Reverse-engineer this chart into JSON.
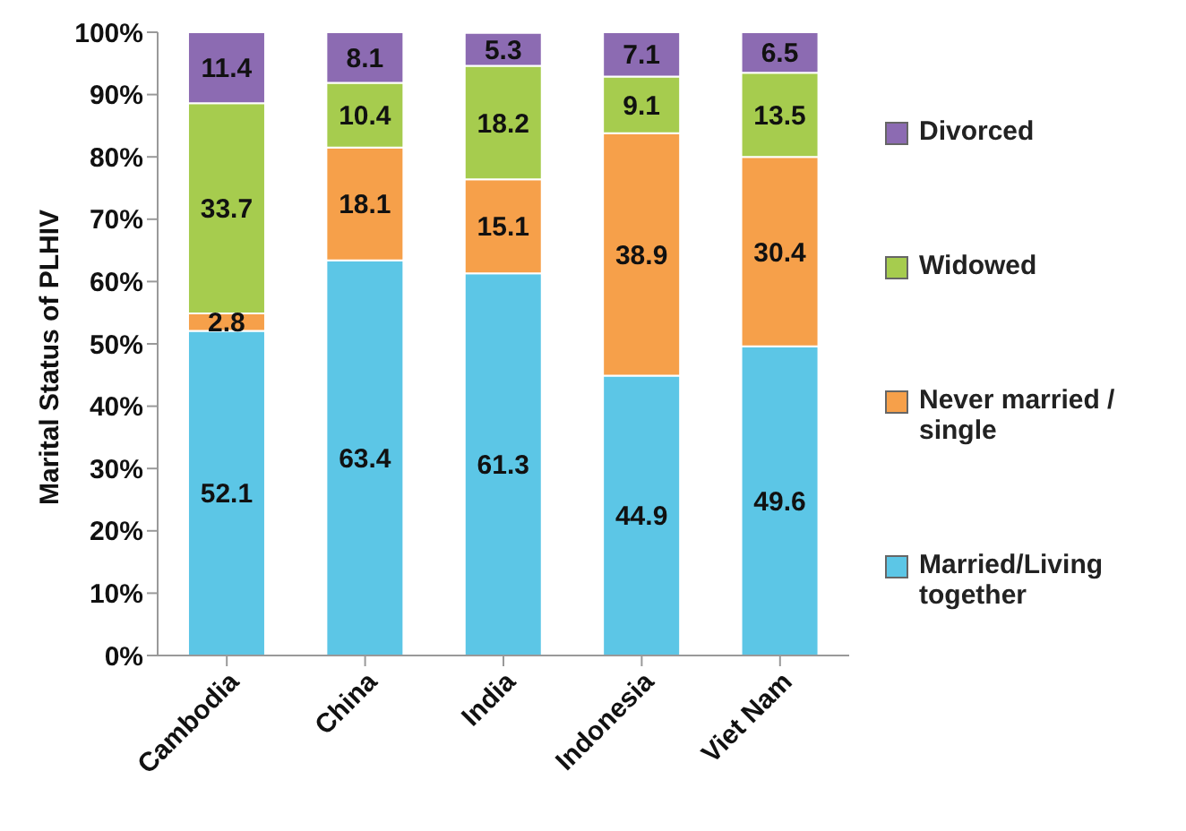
{
  "chart_data": {
    "type": "bar",
    "stacked": true,
    "ylabel": "Marital Status of PLHIV",
    "categories": [
      "Cambodia",
      "China",
      "India",
      "Indonesia",
      "Viet Nam"
    ],
    "series": [
      {
        "name": "Married/Living together",
        "color": "#5cc6e6",
        "values": [
          52.1,
          63.4,
          61.3,
          44.9,
          49.6
        ]
      },
      {
        "name": "Never married / single",
        "color": "#f6a04a",
        "values": [
          2.8,
          18.1,
          15.1,
          38.9,
          30.4
        ]
      },
      {
        "name": "Widowed",
        "color": "#a6cc4e",
        "values": [
          33.7,
          10.4,
          18.2,
          9.1,
          13.5
        ]
      },
      {
        "name": "Divorced",
        "color": "#8c6bb2",
        "values": [
          11.4,
          8.1,
          5.3,
          7.1,
          6.5
        ]
      }
    ],
    "ylim": [
      0,
      100
    ],
    "yticks": [
      {
        "value": 0,
        "label": "0%"
      },
      {
        "value": 10,
        "label": "10%"
      },
      {
        "value": 20,
        "label": "20%"
      },
      {
        "value": 30,
        "label": "30%"
      },
      {
        "value": 40,
        "label": "40%"
      },
      {
        "value": 50,
        "label": "50%"
      },
      {
        "value": 60,
        "label": "60%"
      },
      {
        "value": 70,
        "label": "70%"
      },
      {
        "value": 80,
        "label": "80%"
      },
      {
        "value": 90,
        "label": "90%"
      },
      {
        "value": 100,
        "label": "100%"
      }
    ],
    "data_labels": true,
    "legend": "right",
    "grid": false
  }
}
